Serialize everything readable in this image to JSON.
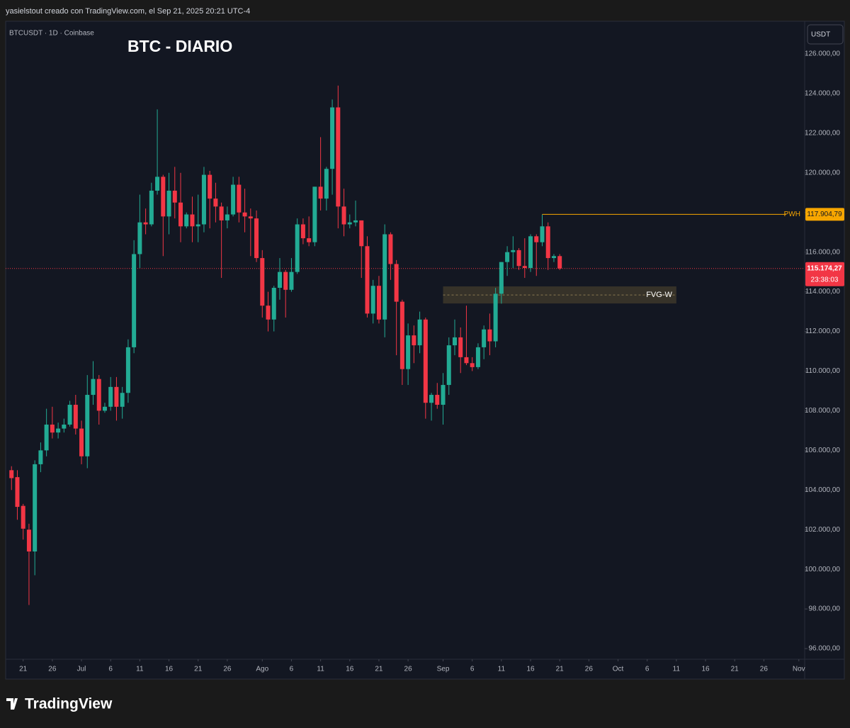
{
  "header": {
    "text": "yasielstout creado con TradingView.com, el Sep 21, 2025 20:21 UTC-4"
  },
  "footer": {
    "brand": "TradingView"
  },
  "chart_data": {
    "type": "candlestick",
    "title": "BTC - DIARIO",
    "symbol": "BTCUSDT · 1D · Coinbase",
    "currency": "USDT",
    "up_color": "#22ab94",
    "down_color": "#f23645",
    "grid": false,
    "x": [
      "06-19",
      "06-20",
      "06-21",
      "06-22",
      "06-23",
      "06-24",
      "06-25",
      "06-26",
      "06-27",
      "06-28",
      "06-29",
      "06-30",
      "07-01",
      "07-02",
      "07-03",
      "07-04",
      "07-05",
      "07-06",
      "07-07",
      "07-08",
      "07-09",
      "07-10",
      "07-11",
      "07-12",
      "07-13",
      "07-14",
      "07-15",
      "07-16",
      "07-17",
      "07-18",
      "07-19",
      "07-20",
      "07-21",
      "07-22",
      "07-23",
      "07-24",
      "07-25",
      "07-26",
      "07-27",
      "07-28",
      "07-29",
      "07-30",
      "07-31",
      "08-01",
      "08-02",
      "08-03",
      "08-04",
      "08-05",
      "08-06",
      "08-07",
      "08-08",
      "08-09",
      "08-10",
      "08-11",
      "08-12",
      "08-13",
      "08-14",
      "08-15",
      "08-16",
      "08-17",
      "08-18",
      "08-19",
      "08-20",
      "08-21",
      "08-22",
      "08-23",
      "08-24",
      "08-25",
      "08-26",
      "08-27",
      "08-28",
      "08-29",
      "08-30",
      "08-31",
      "09-01",
      "09-02",
      "09-03",
      "09-04",
      "09-05",
      "09-06",
      "09-07",
      "09-08",
      "09-09",
      "09-10",
      "09-11",
      "09-12",
      "09-13",
      "09-14",
      "09-15",
      "09-16",
      "09-17",
      "09-18",
      "09-19",
      "09-20",
      "09-21"
    ],
    "open": [
      105000,
      104650,
      103200,
      102000,
      100900,
      105300,
      106000,
      107300,
      106900,
      107100,
      107300,
      108300,
      107100,
      105700,
      108800,
      109600,
      108000,
      108200,
      109200,
      108200,
      108900,
      111200,
      115900,
      117500,
      117400,
      119100,
      119800,
      117800,
      119100,
      118500,
      117300,
      117900,
      117300,
      117400,
      119900,
      118700,
      118300,
      117600,
      117900,
      119400,
      118000,
      117800,
      117700,
      115700,
      113300,
      112600,
      114200,
      115000,
      114100,
      115000,
      117400,
      116700,
      116500,
      119300,
      118700,
      120200,
      123300,
      118300,
      117400,
      117500,
      117600,
      116300,
      112900,
      114300,
      112600,
      116900,
      115400,
      113500,
      110100,
      111800,
      111300,
      112600,
      108400,
      108800,
      108300,
      109300,
      111300,
      111700,
      110700,
      110400,
      110200,
      111200,
      112100,
      111500,
      113900,
      115500,
      116000,
      116100,
      115300,
      115200,
      116800,
      116500,
      117300,
      115700,
      115800
    ],
    "high": [
      105200,
      105000,
      103300,
      102300,
      105500,
      106400,
      108100,
      108200,
      107400,
      107600,
      108500,
      108800,
      107500,
      109800,
      110500,
      109800,
      108400,
      109700,
      109700,
      109200,
      111600,
      116600,
      118900,
      118200,
      119500,
      123200,
      119900,
      120000,
      120300,
      120000,
      118000,
      118800,
      118900,
      120300,
      120100,
      119500,
      118500,
      118300,
      119800,
      119800,
      119200,
      118200,
      118100,
      116100,
      114000,
      114300,
      115700,
      115100,
      115700,
      117700,
      117700,
      117800,
      119300,
      121800,
      120300,
      123700,
      124400,
      119200,
      117900,
      118600,
      117600,
      116800,
      114600,
      114800,
      117400,
      117000,
      115600,
      113600,
      112400,
      112300,
      113000,
      112700,
      108900,
      109400,
      109900,
      111700,
      112600,
      112200,
      113300,
      110700,
      111400,
      112300,
      112900,
      114200,
      115500,
      116300,
      116800,
      116200,
      116700,
      116900,
      116900,
      117900,
      117500,
      115900,
      115900
    ],
    "low": [
      104000,
      102500,
      101500,
      98200,
      99700,
      104900,
      105700,
      106600,
      106600,
      106900,
      107200,
      106800,
      105300,
      105100,
      108300,
      107300,
      107900,
      108000,
      107500,
      107600,
      108400,
      110900,
      115200,
      116900,
      117300,
      118900,
      115800,
      116900,
      117700,
      116500,
      117200,
      116500,
      116500,
      117000,
      117200,
      117500,
      114700,
      117200,
      117800,
      117500,
      117000,
      115800,
      115500,
      112700,
      112000,
      112000,
      113600,
      112700,
      114000,
      114900,
      116400,
      116300,
      116300,
      118100,
      118100,
      118900,
      117200,
      116800,
      117200,
      117300,
      114700,
      112700,
      112400,
      112400,
      111700,
      114600,
      110800,
      109300,
      109300,
      110400,
      110900,
      107600,
      107500,
      108100,
      107300,
      108800,
      110800,
      109900,
      110300,
      110000,
      110100,
      110600,
      110800,
      111200,
      113400,
      114800,
      115200,
      115100,
      114700,
      115000,
      114800,
      116300,
      115100,
      115500,
      115100
    ],
    "close": [
      104600,
      103150,
      102050,
      100900,
      105300,
      106000,
      107300,
      106900,
      107100,
      107300,
      108300,
      107100,
      105700,
      108800,
      109600,
      108000,
      108200,
      109200,
      108200,
      108900,
      111200,
      115900,
      117500,
      117400,
      119100,
      119800,
      117800,
      119100,
      118500,
      117300,
      117900,
      117300,
      117400,
      119900,
      118700,
      118300,
      117600,
      117900,
      119400,
      118000,
      117800,
      117700,
      115700,
      113300,
      112600,
      114200,
      115000,
      114100,
      115000,
      117400,
      116700,
      116500,
      119300,
      118700,
      120200,
      123300,
      118300,
      117400,
      117500,
      117600,
      116300,
      112900,
      114300,
      112600,
      116900,
      115400,
      113500,
      110100,
      111800,
      111300,
      112600,
      108400,
      108800,
      108300,
      109300,
      111300,
      111700,
      110700,
      110400,
      110200,
      111200,
      112100,
      111500,
      113900,
      115500,
      116000,
      116100,
      115300,
      115200,
      116800,
      116500,
      117300,
      115700,
      115800,
      115174.27
    ],
    "ylim": [
      95464,
      127645
    ],
    "yticks": [
      {
        "value": 96000,
        "label": "96.000,00"
      },
      {
        "value": 98000,
        "label": "98.000,00"
      },
      {
        "value": 100000,
        "label": "100.000,00"
      },
      {
        "value": 102000,
        "label": "102.000,00"
      },
      {
        "value": 104000,
        "label": "104.000,00"
      },
      {
        "value": 106000,
        "label": "106.000,00"
      },
      {
        "value": 108000,
        "label": "108.000,00"
      },
      {
        "value": 110000,
        "label": "110.000,00"
      },
      {
        "value": 112000,
        "label": "112.000,00"
      },
      {
        "value": 114000,
        "label": "114.000,00"
      },
      {
        "value": 116000,
        "label": "116.000,00"
      },
      {
        "value": 118000,
        "label": "118.000,00"
      },
      {
        "value": 120000,
        "label": "120.000,00"
      },
      {
        "value": 122000,
        "label": "122.000,00"
      },
      {
        "value": 124000,
        "label": "124.000,00"
      },
      {
        "value": 126000,
        "label": "126.000,00"
      }
    ],
    "xlim": [
      "06-18",
      "11-02"
    ],
    "xticks": [
      {
        "value": "06-21",
        "label": "21"
      },
      {
        "value": "06-26",
        "label": "26"
      },
      {
        "value": "07-01",
        "label": "Jul"
      },
      {
        "value": "07-06",
        "label": "6"
      },
      {
        "value": "07-11",
        "label": "11"
      },
      {
        "value": "07-16",
        "label": "16"
      },
      {
        "value": "07-21",
        "label": "21"
      },
      {
        "value": "07-26",
        "label": "26"
      },
      {
        "value": "08-01",
        "label": "Ago"
      },
      {
        "value": "08-06",
        "label": "6"
      },
      {
        "value": "08-11",
        "label": "11"
      },
      {
        "value": "08-16",
        "label": "16"
      },
      {
        "value": "08-21",
        "label": "21"
      },
      {
        "value": "08-26",
        "label": "26"
      },
      {
        "value": "09-01",
        "label": "Sep"
      },
      {
        "value": "09-06",
        "label": "6"
      },
      {
        "value": "09-11",
        "label": "11"
      },
      {
        "value": "09-16",
        "label": "16"
      },
      {
        "value": "09-21",
        "label": "21"
      },
      {
        "value": "09-26",
        "label": "26"
      },
      {
        "value": "10-01",
        "label": "Oct"
      },
      {
        "value": "10-06",
        "label": "6"
      },
      {
        "value": "10-11",
        "label": "11"
      },
      {
        "value": "10-16",
        "label": "16"
      },
      {
        "value": "10-21",
        "label": "21"
      },
      {
        "value": "10-26",
        "label": "26"
      },
      {
        "value": "11-01",
        "label": "Nov"
      }
    ],
    "levels": [
      {
        "name": "PWH",
        "value": 117904.79,
        "label": "117.904,79",
        "color": "#f7a600",
        "start": "09-18"
      }
    ],
    "last_price": {
      "value": 115174.27,
      "label": "115.174,27",
      "countdown": "23:38:03",
      "color": "#f23645"
    },
    "zones": [
      {
        "name": "FVG-W",
        "top": 114270,
        "bottom": 113410,
        "start": "09-01",
        "end": "10-11"
      }
    ]
  }
}
